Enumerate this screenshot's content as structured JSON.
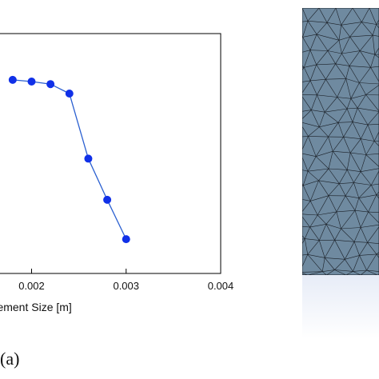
{
  "panel_label": "(a)",
  "chart_data": {
    "type": "line",
    "xlabel": "Element Size [m]",
    "ylabel": "",
    "xlim": [
      0.001666,
      0.004
    ],
    "x_ticks": [
      "0.002",
      "0.003",
      "0.004"
    ],
    "x": [
      0.0018,
      0.002,
      0.0022,
      0.0024,
      0.0026,
      0.0028,
      0.003
    ],
    "y": [
      0.98,
      0.97,
      0.955,
      0.9,
      0.52,
      0.28,
      0.05
    ],
    "ylim": [
      -0.15,
      1.25
    ],
    "marker_color": "#1030e8",
    "line_color": "#2a5fd0",
    "grid": false
  },
  "mesh_panel": {
    "fill_color": "#6f8aa0",
    "edge_color": "#1a1f26",
    "fade_color": "#e7ecf7"
  }
}
